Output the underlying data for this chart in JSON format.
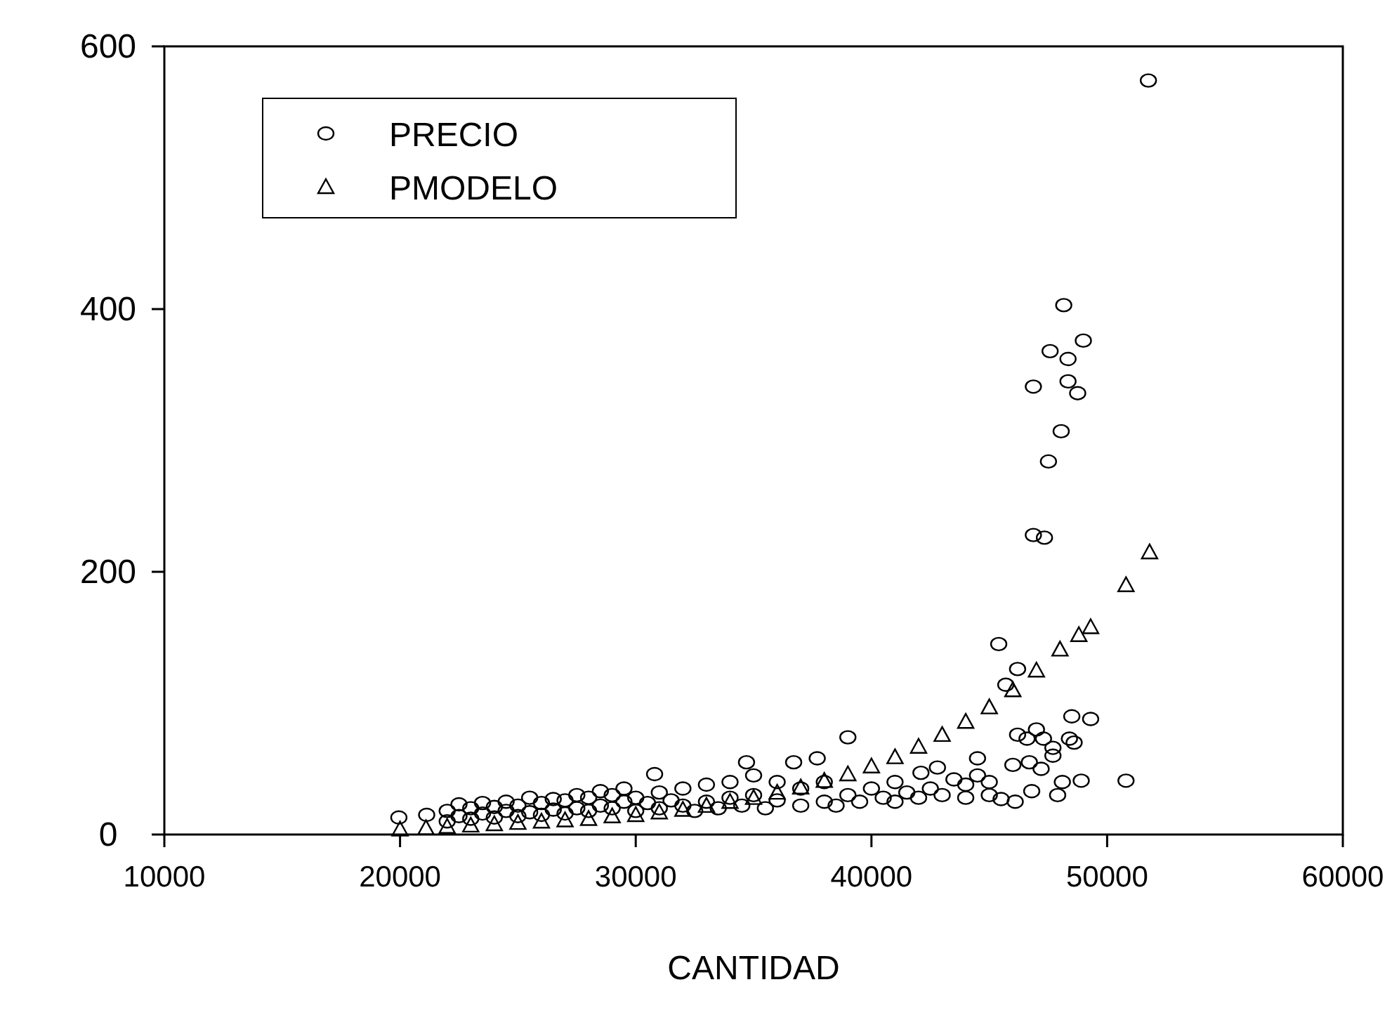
{
  "chart_data": {
    "type": "scatter",
    "xlabel": "CANTIDAD",
    "xlim": [
      10000,
      60000
    ],
    "xticks": [
      10000,
      20000,
      30000,
      40000,
      50000,
      60000
    ],
    "ylim": [
      0,
      600
    ],
    "yticks": [
      0,
      200,
      400,
      600
    ],
    "grid": false,
    "legend": "top left",
    "series": [
      {
        "name": "PRECIO",
        "color": "#000000",
        "marker": "circle",
        "x": [
          19950,
          21130,
          22000,
          22000,
          22500,
          22500,
          23000,
          23000,
          23500,
          23500,
          24000,
          24000,
          24500,
          24500,
          25000,
          25000,
          25500,
          25500,
          26000,
          26000,
          26500,
          26500,
          27000,
          27000,
          27500,
          27500,
          28000,
          28000,
          28500,
          28500,
          29000,
          29000,
          29500,
          29500,
          30000,
          30000,
          30500,
          30800,
          31000,
          31000,
          31500,
          32000,
          32000,
          32500,
          33000,
          33000,
          33500,
          34000,
          34000,
          34500,
          34700,
          35000,
          35000,
          35500,
          36000,
          36000,
          36700,
          37000,
          37000,
          37700,
          38000,
          38000,
          38500,
          39000,
          39000,
          39500,
          40000,
          40500,
          41000,
          41000,
          41500,
          42000,
          42100,
          42500,
          42800,
          43000,
          43500,
          44000,
          44000,
          44500,
          44500,
          45000,
          45000,
          45400,
          45500,
          45700,
          46000,
          46100,
          46200,
          46200,
          46600,
          46700,
          46800,
          47000,
          47200,
          47300,
          47700,
          47700,
          47900,
          48100,
          48400,
          48500,
          48600,
          48900,
          49300,
          50800,
          51750,
          48160,
          48990,
          47580,
          48340,
          48340,
          46870,
          48750,
          48050,
          47510,
          46870,
          47340
        ],
        "values": [
          13,
          15,
          10,
          18,
          14,
          23,
          12,
          20,
          16,
          24,
          13,
          21,
          18,
          25,
          14,
          22,
          17,
          28,
          15,
          24,
          19,
          27,
          16,
          26,
          20,
          30,
          18,
          28,
          22,
          33,
          20,
          30,
          25,
          35,
          18,
          28,
          24,
          46,
          20,
          32,
          26,
          22,
          35,
          18,
          25,
          38,
          20,
          28,
          40,
          22,
          55,
          30,
          45,
          20,
          26,
          40,
          55,
          22,
          35,
          58,
          25,
          40,
          22,
          74,
          30,
          25,
          35,
          28,
          40,
          25,
          32,
          28,
          47,
          35,
          51,
          30,
          42,
          28,
          38,
          58,
          45,
          30,
          40,
          145,
          27,
          114,
          53,
          25,
          126,
          76,
          73,
          55,
          33,
          80,
          50,
          73,
          60,
          66,
          30,
          40,
          73,
          90,
          70,
          41,
          88,
          41,
          574,
          403,
          376,
          368,
          362,
          345,
          341,
          336,
          307,
          284,
          228,
          226
        ]
      },
      {
        "name": "PMODELO",
        "color": "#000000",
        "marker": "triangle",
        "x": [
          20000,
          21100,
          22000,
          23000,
          24000,
          25000,
          26000,
          27000,
          28000,
          29000,
          30000,
          31000,
          32000,
          33000,
          34000,
          35000,
          36000,
          37000,
          38000,
          39000,
          40000,
          41000,
          42000,
          43000,
          44000,
          45000,
          46000,
          47000,
          48000,
          48800,
          49300,
          50800,
          51800
        ],
        "values": [
          4,
          5,
          6,
          7,
          8,
          9,
          10,
          11,
          12,
          14,
          15,
          17,
          19,
          22,
          25,
          28,
          32,
          36,
          41,
          46,
          52,
          59,
          67,
          76,
          86,
          97,
          110,
          125,
          141,
          152,
          158,
          190,
          215
        ]
      }
    ]
  }
}
